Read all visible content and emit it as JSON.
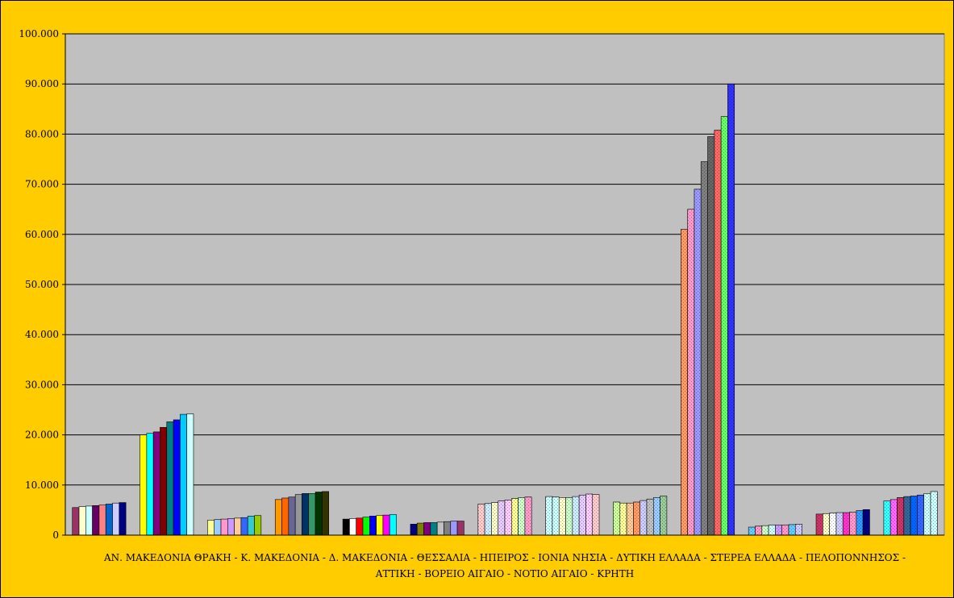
{
  "chart_data": {
    "type": "bar",
    "title": "",
    "xlabel_lines": [
      "ΑΝ. ΜΑΚΕΔΟΝΙΑ ΘΡΑΚΗ - Κ. ΜΑΚΕΔΟΝΙΑ - Δ. ΜΑΚΕΔΟΝΙΑ - ΘΕΣΣΑΛΙΑ - ΗΠΕΙΡΟΣ - ΙΟΝΙΑ ΝΗΣΙΑ - ΔΥΤΙΚΗ ΕΛΛΑΔΑ - ΣΤΕΡΕΑ ΕΛΛΑΔΑ - ΠΕΛΟΠΟΝΝΗΣΟΣ -",
      "ΑΤΤΙΚΗ - ΒΟΡΕΙΟ ΑΙΓΑΙΟ - ΝΟΤΙΟ ΑΙΓΑΙΟ - ΚΡΗΤΗ"
    ],
    "ylabel": "",
    "ylim": [
      0,
      100000
    ],
    "yticks": [
      0,
      10000,
      20000,
      30000,
      40000,
      50000,
      60000,
      70000,
      80000,
      90000,
      100000
    ],
    "ytick_labels": [
      "0",
      "10.000",
      "20.000",
      "30.000",
      "40.000",
      "50.000",
      "60.000",
      "70.000",
      "80.000",
      "90.000",
      "100.000"
    ],
    "grid": true,
    "legend": "none",
    "groups": [
      {
        "values": [
          5500,
          5700,
          5800,
          5900,
          6000,
          6200,
          6400,
          6500
        ],
        "colors": [
          "#993366",
          "#ffffcc",
          "#ccffff",
          "#660066",
          "#ff8080",
          "#0066cc",
          "#ccccff",
          "#000080"
        ]
      },
      {
        "values": [
          20000,
          20300,
          20600,
          21500,
          22600,
          23000,
          24100,
          24200
        ],
        "colors": [
          "#ffff00",
          "#00ffff",
          "#800080",
          "#800000",
          "#008080",
          "#0000ff",
          "#00ccff",
          "#ccffff"
        ]
      },
      {
        "values": [
          3000,
          3100,
          3200,
          3300,
          3400,
          3500,
          3800,
          3900
        ],
        "colors": [
          "#ffff99",
          "#99ccff",
          "#ff99cc",
          "#cc99ff",
          "#ffcc99",
          "#3366ff",
          "#33cccc",
          "#99cc00"
        ]
      },
      {
        "values": [
          7100,
          7400,
          7600,
          8100,
          8300,
          8300,
          8600,
          8700
        ],
        "colors": [
          "#ff9900",
          "#ff6600",
          "#666699",
          "#969696",
          "#003366",
          "#339966",
          "#003300",
          "#333300"
        ]
      },
      {
        "values": [
          3200,
          3300,
          3400,
          3600,
          3800,
          3900,
          4000,
          4100
        ],
        "colors": [
          "#000000",
          "#ffffff",
          "#ff0000",
          "#00ff00",
          "#0000ff",
          "#ffff00",
          "#ff00ff",
          "#00ffff"
        ]
      },
      {
        "values": [
          2200,
          2400,
          2500,
          2500,
          2600,
          2700,
          2800,
          2800
        ],
        "colors": [
          "#000080",
          "#808000",
          "#800080",
          "#008080",
          "#c0c0c0",
          "#808080",
          "#9999ff",
          "#993366"
        ]
      },
      {
        "values": [
          6200,
          6300,
          6500,
          6800,
          7000,
          7300,
          7500,
          7600
        ],
        "colors": [
          "#ffcccc",
          "#ccecff",
          "#ffffcc",
          "#e6ccff",
          "#ffccff",
          "#ffff99",
          "#ccffcc",
          "#ff99cc"
        ]
      },
      {
        "values": [
          7700,
          7600,
          7500,
          7500,
          7700,
          8000,
          8200,
          8100
        ],
        "colors": [
          "#ccffff",
          "#ccffff",
          "#ffffcc",
          "#ccffcc",
          "#ccecff",
          "#e6ccff",
          "#ffccff",
          "#ffcccc"
        ]
      },
      {
        "values": [
          6600,
          6400,
          6400,
          6600,
          6900,
          7200,
          7500,
          7800
        ],
        "colors": [
          "#ccff99",
          "#ffff99",
          "#ffcc99",
          "#ff9966",
          "#ccccff",
          "#c0c0c0",
          "#99ccff",
          "#99cc99"
        ]
      },
      {
        "values": [
          61000,
          65000,
          69000,
          74500,
          79500,
          80800,
          83500,
          90000
        ],
        "colors": [
          "#ff9966",
          "#ff99cc",
          "#9999ff",
          "#808080",
          "#666666",
          "#ff6666",
          "#66ff66",
          "#3333ff"
        ]
      },
      {
        "values": [
          1600,
          1800,
          1900,
          2000,
          2000,
          2000,
          2100,
          2200
        ],
        "colors": [
          "#66ccff",
          "#ff99cc",
          "#ccffcc",
          "#ccffff",
          "#cc99ff",
          "#ff99cc",
          "#66ccff",
          "#ccccff"
        ]
      },
      {
        "values": [
          4200,
          4300,
          4400,
          4500,
          4500,
          4600,
          4900,
          5100
        ],
        "colors": [
          "#cc3366",
          "#ffffcc",
          "#ffffff",
          "#ccccff",
          "#ff33cc",
          "#ff99cc",
          "#3399ff",
          "#000080"
        ]
      },
      {
        "values": [
          6800,
          7100,
          7500,
          7700,
          7800,
          8000,
          8300,
          8700
        ],
        "colors": [
          "#33ffff",
          "#ff66ff",
          "#cc3366",
          "#336699",
          "#0066ff",
          "#3366ff",
          "#ccffff",
          "#ccffff"
        ]
      }
    ]
  }
}
